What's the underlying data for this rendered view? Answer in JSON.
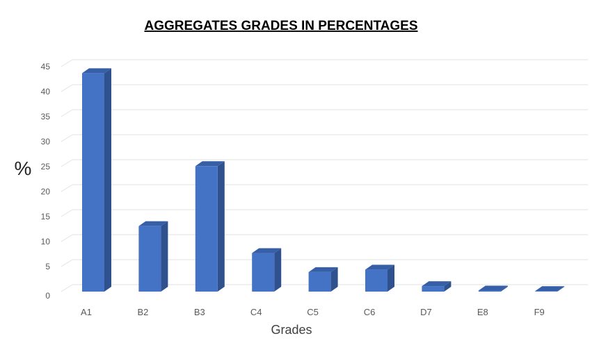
{
  "chart_data": {
    "type": "bar",
    "title": "AGGREGATES GRADES IN PERCENTAGES",
    "xlabel": "Grades",
    "ylabel": "%",
    "categories": [
      "A1",
      "B2",
      "B3",
      "C4",
      "C5",
      "C6",
      "D7",
      "E8",
      "F9"
    ],
    "values": [
      43.7,
      13.1,
      25.1,
      7.7,
      3.9,
      4.4,
      1.1,
      0.2,
      0.1
    ],
    "ylim": [
      0,
      45
    ],
    "yticks": [
      "0",
      "5",
      "10",
      "15",
      "20",
      "25",
      "30",
      "35",
      "40",
      "45"
    ],
    "grid": true,
    "three_d": true,
    "colors": {
      "bar_front": "#4472C4",
      "bar_side": "#2F528F",
      "bar_top": "#365FA8"
    }
  }
}
